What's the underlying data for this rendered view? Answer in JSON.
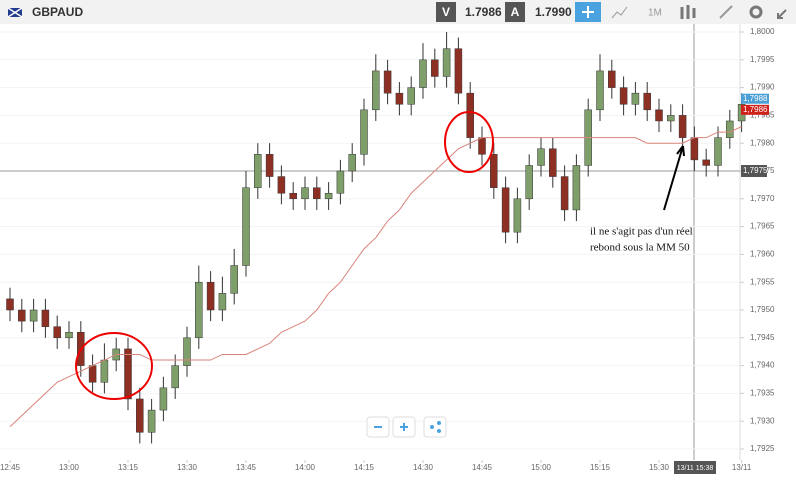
{
  "toolbar": {
    "symbol": "GBPAUD",
    "sell_label": "V",
    "sell_price": "1.7986",
    "buy_label": "A",
    "buy_price": "1.7990",
    "timeframe": "1M"
  },
  "chart_data": {
    "type": "candlestick",
    "categories": [
      "12:45",
      null,
      null,
      null,
      null,
      "13:00",
      null,
      null,
      null,
      null,
      "13:15",
      null,
      null,
      null,
      null,
      "13:30",
      null,
      null,
      null,
      null,
      "13:45",
      null,
      null,
      null,
      null,
      "14:00",
      null,
      null,
      null,
      null,
      "14:15",
      null,
      null,
      null,
      null,
      "14:30",
      null,
      null,
      null,
      null,
      "14:45",
      null,
      null,
      null,
      null,
      "15:00",
      null,
      null,
      null,
      null,
      "15:15",
      null,
      null,
      null,
      null,
      "15:30",
      null,
      null,
      null,
      null,
      null,
      null,
      "13/11"
    ],
    "open": [
      1.7952,
      1.795,
      1.7948,
      1.795,
      1.7947,
      1.7945,
      1.7946,
      1.794,
      1.7937,
      1.7941,
      1.7943,
      1.7934,
      1.7928,
      1.7932,
      1.7936,
      1.794,
      1.7945,
      1.7955,
      1.795,
      1.7953,
      1.7958,
      1.7972,
      1.7978,
      1.7974,
      1.7971,
      1.797,
      1.7972,
      1.797,
      1.7971,
      1.7975,
      1.7978,
      1.7986,
      1.7993,
      1.7989,
      1.7987,
      1.799,
      1.7995,
      1.7992,
      1.7997,
      1.7989,
      1.7981,
      1.7978,
      1.7972,
      1.7964,
      1.797,
      1.7976,
      1.7979,
      1.7974,
      1.7968,
      1.7976,
      1.7986,
      1.7993,
      1.799,
      1.7987,
      1.7989,
      1.7986,
      1.7984,
      1.7985,
      1.7981,
      1.7977,
      1.7976,
      1.7981,
      1.7984
    ],
    "high": [
      1.7954,
      1.7952,
      1.7952,
      1.7952,
      1.7949,
      1.7948,
      1.7948,
      1.7942,
      1.7944,
      1.7945,
      1.7945,
      1.7936,
      1.7934,
      1.7938,
      1.7942,
      1.7947,
      1.7958,
      1.7957,
      1.7956,
      1.7961,
      1.7975,
      1.798,
      1.798,
      1.7976,
      1.7973,
      1.7974,
      1.7974,
      1.7973,
      1.7977,
      1.798,
      1.7988,
      1.7996,
      1.7995,
      1.7991,
      1.7992,
      1.7998,
      1.7997,
      1.8,
      1.7999,
      1.7991,
      1.7983,
      1.798,
      1.7974,
      1.7972,
      1.7978,
      1.7981,
      1.7981,
      1.7976,
      1.7978,
      1.7988,
      1.7996,
      1.7995,
      1.7992,
      1.7991,
      1.7991,
      1.7988,
      1.7987,
      1.7987,
      1.7983,
      1.7979,
      1.7983,
      1.7986,
      1.7989
    ],
    "low": [
      1.7948,
      1.7946,
      1.7946,
      1.7945,
      1.7943,
      1.7943,
      1.7938,
      1.7935,
      1.7935,
      1.7939,
      1.7932,
      1.7926,
      1.7926,
      1.793,
      1.7934,
      1.7938,
      1.7943,
      1.7948,
      1.7948,
      1.7951,
      1.7956,
      1.797,
      1.7972,
      1.7969,
      1.7968,
      1.7968,
      1.7968,
      1.7968,
      1.7969,
      1.7973,
      1.7976,
      1.7984,
      1.7987,
      1.7985,
      1.7985,
      1.7988,
      1.799,
      1.799,
      1.7987,
      1.7979,
      1.7976,
      1.797,
      1.7962,
      1.7962,
      1.7968,
      1.7974,
      1.7972,
      1.7966,
      1.7966,
      1.7974,
      1.7984,
      1.7988,
      1.7985,
      1.7985,
      1.7984,
      1.7982,
      1.7982,
      1.7979,
      1.7975,
      1.7974,
      1.7974,
      1.7979,
      1.7982
    ],
    "close": [
      1.795,
      1.7948,
      1.795,
      1.7947,
      1.7945,
      1.7946,
      1.794,
      1.7937,
      1.7941,
      1.7943,
      1.7934,
      1.7928,
      1.7932,
      1.7936,
      1.794,
      1.7945,
      1.7955,
      1.795,
      1.7953,
      1.7958,
      1.7972,
      1.7978,
      1.7974,
      1.7971,
      1.797,
      1.7972,
      1.797,
      1.7971,
      1.7975,
      1.7978,
      1.7986,
      1.7993,
      1.7989,
      1.7987,
      1.799,
      1.7995,
      1.7992,
      1.7997,
      1.7989,
      1.7981,
      1.7978,
      1.7972,
      1.7964,
      1.797,
      1.7976,
      1.7979,
      1.7974,
      1.7968,
      1.7976,
      1.7986,
      1.7993,
      1.799,
      1.7987,
      1.7989,
      1.7986,
      1.7984,
      1.7985,
      1.7981,
      1.7977,
      1.7976,
      1.7981,
      1.7984,
      1.7987
    ],
    "up_color": "#7f9f6a",
    "down_color": "#8e2f24",
    "ma": {
      "color": "#d9837a",
      "values": [
        1.7929,
        1.7931,
        1.7933,
        1.7935,
        1.7937,
        1.7938,
        1.7939,
        1.794,
        1.7941,
        1.7942,
        1.7942,
        1.7942,
        1.7941,
        1.7941,
        1.7941,
        1.7941,
        1.7941,
        1.7941,
        1.7942,
        1.7942,
        1.7942,
        1.7943,
        1.7944,
        1.7946,
        1.7947,
        1.7948,
        1.795,
        1.7953,
        1.7955,
        1.7958,
        1.7961,
        1.7963,
        1.7966,
        1.7968,
        1.7971,
        1.7973,
        1.7975,
        1.7977,
        1.7979,
        1.798,
        1.7981,
        1.7981,
        1.7981,
        1.7981,
        1.7981,
        1.7981,
        1.7981,
        1.7981,
        1.7981,
        1.7981,
        1.7981,
        1.7981,
        1.7981,
        1.7981,
        1.798,
        1.798,
        1.798,
        1.798,
        1.7981,
        1.7981,
        1.7982,
        1.7982,
        1.7983
      ]
    },
    "ylim": [
      1.7925,
      1.8
    ],
    "yticks": [
      {
        "value": 1.7925,
        "label": "1,7925"
      },
      {
        "value": 1.793,
        "label": "1,7930"
      },
      {
        "value": 1.7935,
        "label": "1,7935"
      },
      {
        "value": 1.794,
        "label": "1,7940"
      },
      {
        "value": 1.7945,
        "label": "1,7945"
      },
      {
        "value": 1.795,
        "label": "1,7950"
      },
      {
        "value": 1.7955,
        "label": "1,7955"
      },
      {
        "value": 1.796,
        "label": "1,7960"
      },
      {
        "value": 1.7965,
        "label": "1,7965"
      },
      {
        "value": 1.797,
        "label": "1,7970"
      },
      {
        "value": 1.7975,
        "label": "1,7975"
      },
      {
        "value": 1.798,
        "label": "1,7980"
      },
      {
        "value": 1.7985,
        "label": "1,7985"
      },
      {
        "value": 1.799,
        "label": "1,7990"
      },
      {
        "value": 1.7995,
        "label": "1,7995"
      },
      {
        "value": 1.8,
        "label": "1,8000"
      }
    ],
    "price_tags": [
      {
        "value": 1.7988,
        "label": "1,7988",
        "color": "#4a9fd5"
      },
      {
        "value": 1.7986,
        "label": "1,7986",
        "color": "#d0201a"
      }
    ],
    "crosshair": {
      "y": {
        "value": 1.7975,
        "label": "1,7975"
      },
      "x_label": "13/11 15:38"
    },
    "annotation": [
      "il ne s'agit pas d'un réel",
      "rebond sous la MM 50"
    ]
  }
}
